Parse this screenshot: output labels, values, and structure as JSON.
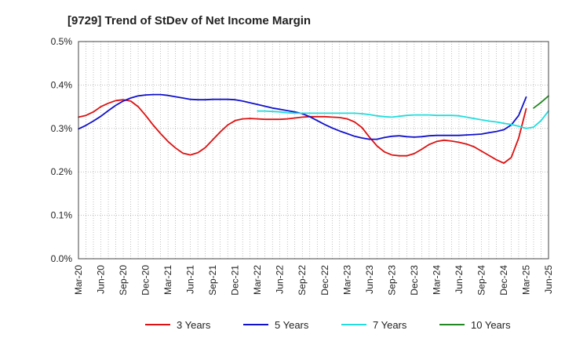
{
  "chart_data": {
    "type": "line",
    "title": "[9729]  Trend of StDev of Net Income Margin",
    "xlabel": "",
    "ylabel": "",
    "ylim": [
      0,
      0.5
    ],
    "y_ticks": [
      0,
      0.1,
      0.2,
      0.3,
      0.4,
      0.5
    ],
    "y_tick_labels": [
      "0.0%",
      "0.1%",
      "0.2%",
      "0.3%",
      "0.4%",
      "0.5%"
    ],
    "x_tick_labels": [
      "Mar-20",
      "Jun-20",
      "Sep-20",
      "Dec-20",
      "Mar-21",
      "Jun-21",
      "Sep-21",
      "Dec-21",
      "Mar-22",
      "Jun-22",
      "Sep-22",
      "Dec-22",
      "Mar-23",
      "Jun-23",
      "Sep-23",
      "Dec-23",
      "Mar-24",
      "Jun-24",
      "Sep-24",
      "Dec-24",
      "Mar-25",
      "Jun-25"
    ],
    "grid": true,
    "legend_position": "bottom",
    "series": [
      {
        "name": "3 Years",
        "color": "#dd1111",
        "start_index": 0,
        "values": [
          0.326,
          0.33,
          0.338,
          0.35,
          0.358,
          0.364,
          0.366,
          0.363,
          0.35,
          0.33,
          0.308,
          0.288,
          0.27,
          0.255,
          0.243,
          0.239,
          0.244,
          0.256,
          0.274,
          0.292,
          0.308,
          0.318,
          0.322,
          0.323,
          0.322,
          0.321,
          0.321,
          0.321,
          0.322,
          0.324,
          0.326,
          0.327,
          0.327,
          0.327,
          0.326,
          0.325,
          0.322,
          0.315,
          0.302,
          0.28,
          0.26,
          0.246,
          0.239,
          0.237,
          0.237,
          0.242,
          0.252,
          0.263,
          0.27,
          0.273,
          0.271,
          0.268,
          0.264,
          0.258,
          0.248,
          0.238,
          0.228,
          0.22,
          0.233,
          0.278,
          0.345
        ]
      },
      {
        "name": "5 Years",
        "color": "#1111cc",
        "start_index": 0,
        "values": [
          0.299,
          0.307,
          0.317,
          0.328,
          0.341,
          0.353,
          0.363,
          0.37,
          0.375,
          0.377,
          0.378,
          0.378,
          0.376,
          0.373,
          0.37,
          0.367,
          0.366,
          0.366,
          0.367,
          0.367,
          0.367,
          0.366,
          0.363,
          0.359,
          0.355,
          0.351,
          0.347,
          0.344,
          0.341,
          0.338,
          0.334,
          0.327,
          0.318,
          0.309,
          0.301,
          0.294,
          0.288,
          0.282,
          0.278,
          0.275,
          0.275,
          0.279,
          0.282,
          0.283,
          0.281,
          0.28,
          0.281,
          0.283,
          0.284,
          0.284,
          0.284,
          0.284,
          0.285,
          0.286,
          0.287,
          0.29,
          0.293,
          0.297,
          0.308,
          0.33,
          0.372
        ]
      },
      {
        "name": "7 Years",
        "color": "#22dddd",
        "start_index": 24,
        "values": [
          0.34,
          0.34,
          0.339,
          0.338,
          0.336,
          0.335,
          0.335,
          0.335,
          0.335,
          0.335,
          0.335,
          0.335,
          0.335,
          0.335,
          0.334,
          0.332,
          0.329,
          0.327,
          0.326,
          0.328,
          0.33,
          0.331,
          0.331,
          0.331,
          0.33,
          0.33,
          0.33,
          0.329,
          0.326,
          0.323,
          0.32,
          0.317,
          0.315,
          0.312,
          0.309,
          0.305,
          0.3,
          0.303,
          0.318,
          0.34
        ]
      },
      {
        "name": "10 Years",
        "color": "#228822",
        "start_index": 61,
        "values": [
          0.347,
          0.36,
          0.375
        ]
      }
    ]
  }
}
